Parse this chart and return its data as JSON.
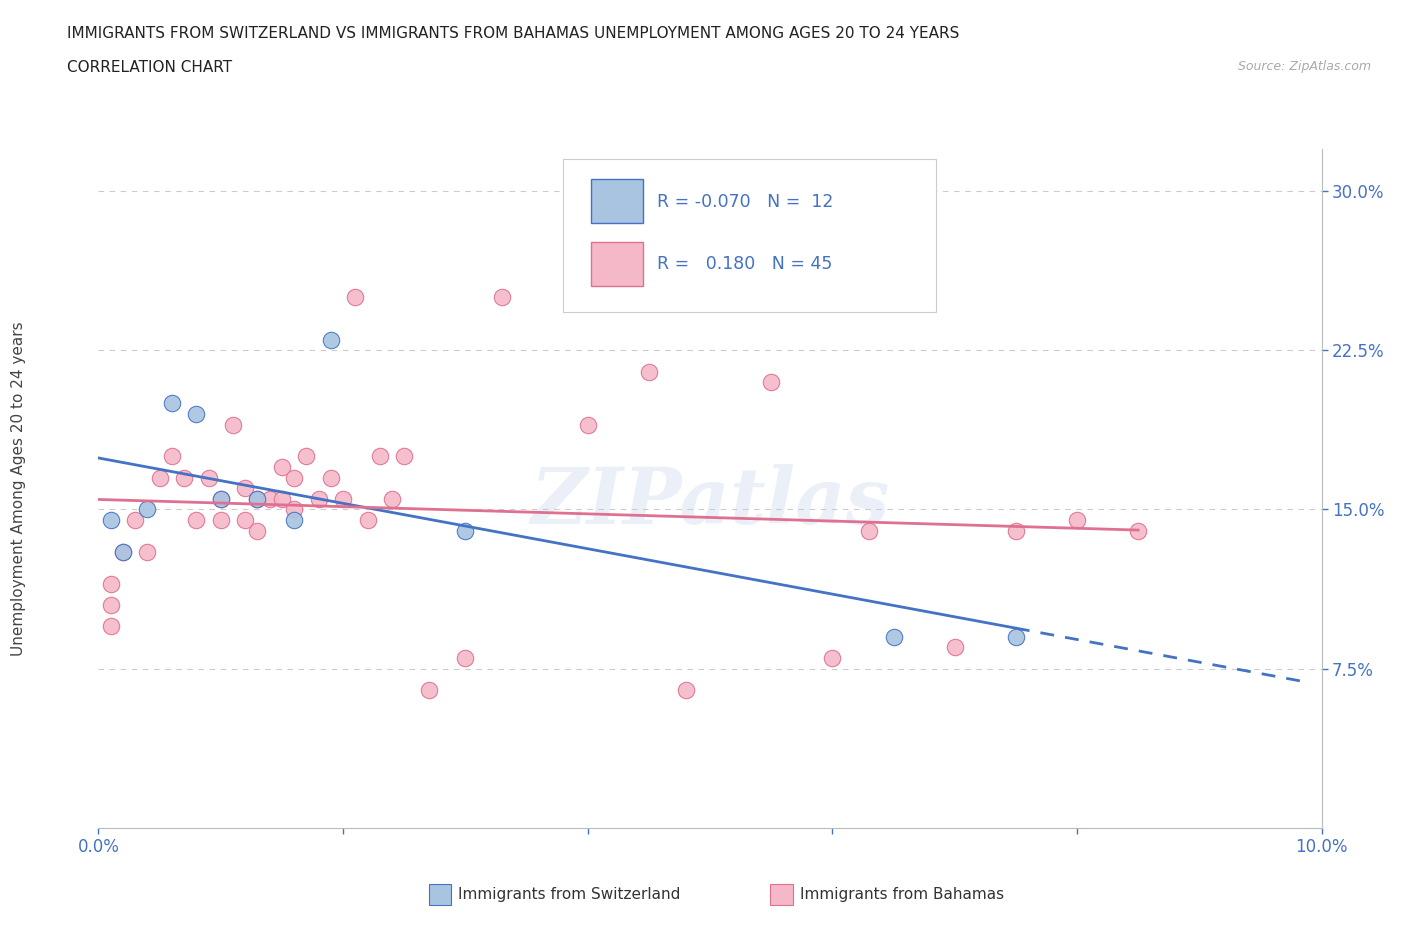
{
  "title_line1": "IMMIGRANTS FROM SWITZERLAND VS IMMIGRANTS FROM BAHAMAS UNEMPLOYMENT AMONG AGES 20 TO 24 YEARS",
  "title_line2": "CORRELATION CHART",
  "source": "Source: ZipAtlas.com",
  "ylabel": "Unemployment Among Ages 20 to 24 years",
  "xlim": [
    0.0,
    0.1
  ],
  "ylim": [
    0.0,
    0.32
  ],
  "xticks": [
    0.0,
    0.02,
    0.04,
    0.06,
    0.08,
    0.1
  ],
  "ytick_labels_right": [
    "7.5%",
    "15.0%",
    "22.5%",
    "30.0%"
  ],
  "ytick_values_right": [
    0.075,
    0.15,
    0.225,
    0.3
  ],
  "swiss_color": "#a8c4e0",
  "bahamas_color": "#f4b8c8",
  "swiss_line_color": "#4472c4",
  "bahamas_line_color": "#e07090",
  "swiss_scatter_x": [
    0.001,
    0.002,
    0.004,
    0.006,
    0.008,
    0.01,
    0.013,
    0.016,
    0.019,
    0.03,
    0.065,
    0.075
  ],
  "swiss_scatter_y": [
    0.145,
    0.13,
    0.15,
    0.2,
    0.195,
    0.155,
    0.155,
    0.145,
    0.23,
    0.14,
    0.09,
    0.09
  ],
  "bahamas_scatter_x": [
    0.001,
    0.001,
    0.001,
    0.002,
    0.003,
    0.004,
    0.005,
    0.006,
    0.007,
    0.008,
    0.009,
    0.01,
    0.01,
    0.011,
    0.012,
    0.012,
    0.013,
    0.013,
    0.014,
    0.015,
    0.015,
    0.016,
    0.016,
    0.017,
    0.018,
    0.019,
    0.02,
    0.021,
    0.022,
    0.023,
    0.024,
    0.025,
    0.027,
    0.03,
    0.033,
    0.04,
    0.045,
    0.048,
    0.055,
    0.06,
    0.063,
    0.07,
    0.075,
    0.08,
    0.085
  ],
  "bahamas_scatter_y": [
    0.115,
    0.105,
    0.095,
    0.13,
    0.145,
    0.13,
    0.165,
    0.175,
    0.165,
    0.145,
    0.165,
    0.155,
    0.145,
    0.19,
    0.16,
    0.145,
    0.155,
    0.14,
    0.155,
    0.17,
    0.155,
    0.165,
    0.15,
    0.175,
    0.155,
    0.165,
    0.155,
    0.25,
    0.145,
    0.175,
    0.155,
    0.175,
    0.065,
    0.08,
    0.25,
    0.19,
    0.215,
    0.065,
    0.21,
    0.08,
    0.14,
    0.085,
    0.14,
    0.145,
    0.14
  ],
  "watermark": "ZIPatlas",
  "background_color": "#ffffff",
  "grid_color": "#cccccc"
}
